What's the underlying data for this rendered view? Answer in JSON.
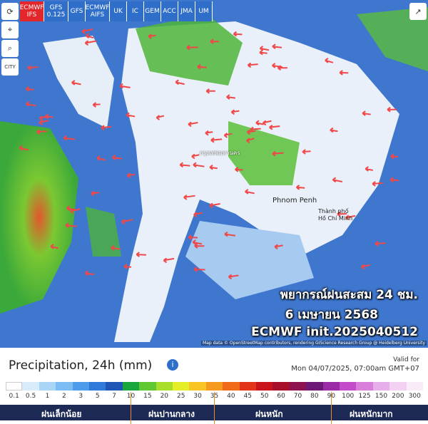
{
  "toolbar": {
    "models": [
      [
        "ECMWF",
        "IFS"
      ],
      [
        "GFS",
        "0.125"
      ],
      [
        "GFS"
      ],
      [
        "ECMWF",
        "AIFS"
      ],
      [
        "UK"
      ],
      [
        "IC"
      ],
      [
        "GEM"
      ],
      [
        "ACC"
      ],
      [
        "JMA"
      ],
      [
        "UM"
      ]
    ],
    "city": "CITY"
  },
  "map": {
    "labels": [
      "กรุงเทพมหานคร",
      "Phnom Penh",
      "Thành phố",
      "Hồ Chí Minh"
    ],
    "overlay": [
      "พยากรณ์ฝนสะสม 24 ชม.",
      "6 เมษายน 2568",
      "ECMWF init.2025040512"
    ],
    "attribution": "Map data © OpenStreetMap contributors, rendering GIScience Research Group @ Heidelberg University"
  },
  "legend": {
    "title": "Precipitation, 24h (mm)",
    "valid_label": "Valid for",
    "valid_time": "Mon 04/07/2025, 07:00am GMT+07",
    "ticks": [
      "0.1",
      "0.5",
      "1",
      "2",
      "3",
      "5",
      "7",
      "10",
      "15",
      "20",
      "25",
      "30",
      "35",
      "40",
      "45",
      "50",
      "60",
      "70",
      "80",
      "90",
      "100",
      "125",
      "150",
      "200",
      "300"
    ],
    "colors": [
      "#ffffff",
      "#d8ecfb",
      "#a9d6f7",
      "#7bbcf2",
      "#4d9beb",
      "#2f79d9",
      "#1f56b5",
      "#19a63c",
      "#5fc832",
      "#a6de2a",
      "#e4ef2a",
      "#f7c624",
      "#f59a1f",
      "#f06a1a",
      "#e3341a",
      "#c8141a",
      "#a80f2a",
      "#8e1250",
      "#6d1876",
      "#9a2aa6",
      "#c24cc9",
      "#d97fdb",
      "#e8aee9",
      "#f2d1f2",
      "#f9ecf9"
    ],
    "categories": [
      "ฝนเล็กน้อย",
      "ฝนปานกลาง",
      "ฝนหนัก",
      "ฝนหนักมาก"
    ]
  }
}
